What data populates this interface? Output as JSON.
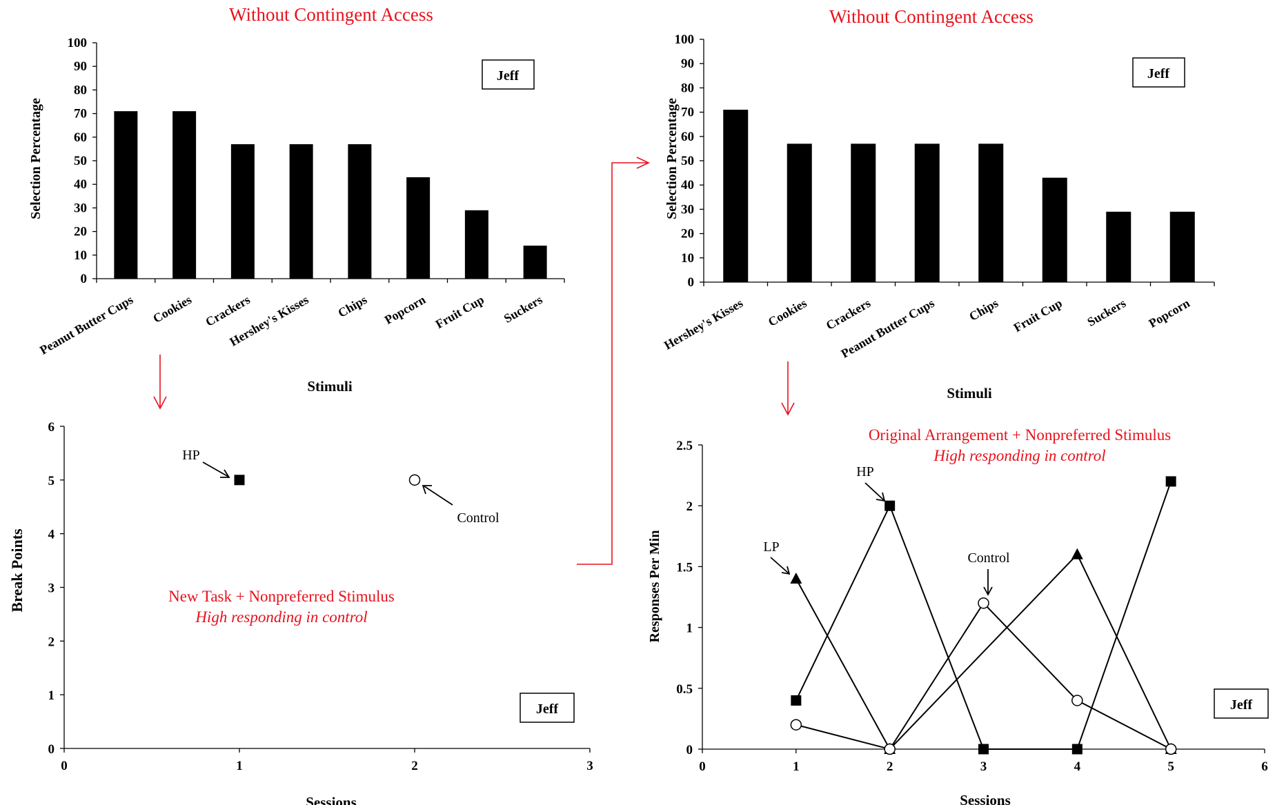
{
  "colors": {
    "annotation": "#e8111b",
    "ink": "#000000"
  },
  "chart_data": [
    {
      "id": "tl",
      "type": "bar",
      "title": "Without Contingent Access",
      "xlabel": "Stimuli",
      "ylabel": "Selection Percentage",
      "ylim": [
        0,
        100
      ],
      "yticks": [
        "0",
        "10",
        "20",
        "30",
        "40",
        "50",
        "60",
        "70",
        "80",
        "90",
        "100"
      ],
      "categories": [
        "Peanut Butter Cups",
        "Cookies",
        "Crackers",
        "Hershey's Kisses",
        "Chips",
        "Popcorn",
        "Fruit Cup",
        "Suckers"
      ],
      "values": [
        71,
        71,
        57,
        57,
        57,
        43,
        29,
        14
      ],
      "legend": "Jeff"
    },
    {
      "id": "tr",
      "type": "bar",
      "title": "Without Contingent Access",
      "xlabel": "Stimuli",
      "ylabel": "Selection Percentage",
      "ylim": [
        0,
        100
      ],
      "yticks": [
        "0",
        "10",
        "20",
        "30",
        "40",
        "50",
        "60",
        "70",
        "80",
        "90",
        "100"
      ],
      "categories": [
        "Hershey's Kisses",
        "Cookies",
        "Crackers",
        "Peanut Butter Cups",
        "Chips",
        "Fruit Cup",
        "Suckers",
        "Popcorn"
      ],
      "values": [
        71,
        57,
        57,
        57,
        57,
        43,
        29,
        29
      ],
      "legend": "Jeff"
    },
    {
      "id": "bl",
      "type": "scatter",
      "xlabel": "Sessions",
      "ylabel": "Break Points",
      "xlim": [
        0,
        3
      ],
      "ylim": [
        0,
        6
      ],
      "xticks": [
        "0",
        "1",
        "2",
        "3"
      ],
      "yticks": [
        "0",
        "1",
        "2",
        "3",
        "4",
        "5",
        "6"
      ],
      "series": [
        {
          "name": "HP",
          "marker": "filled-square",
          "x": [
            1
          ],
          "y": [
            5
          ]
        },
        {
          "name": "Control",
          "marker": "open-circle",
          "x": [
            2
          ],
          "y": [
            5
          ]
        }
      ],
      "annotation": {
        "line1": "New Task + Nonpreferred Stimulus",
        "line2": "High responding in control"
      },
      "legend": "Jeff"
    },
    {
      "id": "br",
      "type": "line",
      "xlabel": "Sessions",
      "ylabel": "Responses Per Min",
      "xlim": [
        0,
        6
      ],
      "ylim": [
        0,
        2.5
      ],
      "xticks": [
        "0",
        "1",
        "2",
        "3",
        "4",
        "5",
        "6"
      ],
      "yticks": [
        "0",
        "0.5",
        "1",
        "1.5",
        "2",
        "2.5"
      ],
      "series": [
        {
          "name": "HP",
          "marker": "filled-square",
          "x": [
            1,
            2,
            3,
            4,
            5
          ],
          "y": [
            0.4,
            2,
            0,
            0,
            2.2
          ]
        },
        {
          "name": "LP",
          "marker": "filled-triangle",
          "x": [
            1,
            2,
            4,
            5
          ],
          "y": [
            1.4,
            0,
            1.6,
            0
          ]
        },
        {
          "name": "Control",
          "marker": "open-circle",
          "x": [
            1,
            2,
            3,
            4,
            5
          ],
          "y": [
            0.2,
            0,
            1.2,
            0.4,
            0
          ]
        }
      ],
      "annotation": {
        "line1": "Original Arrangement + Nonpreferred Stimulus",
        "line2": "High responding in control"
      },
      "legend": "Jeff"
    }
  ]
}
